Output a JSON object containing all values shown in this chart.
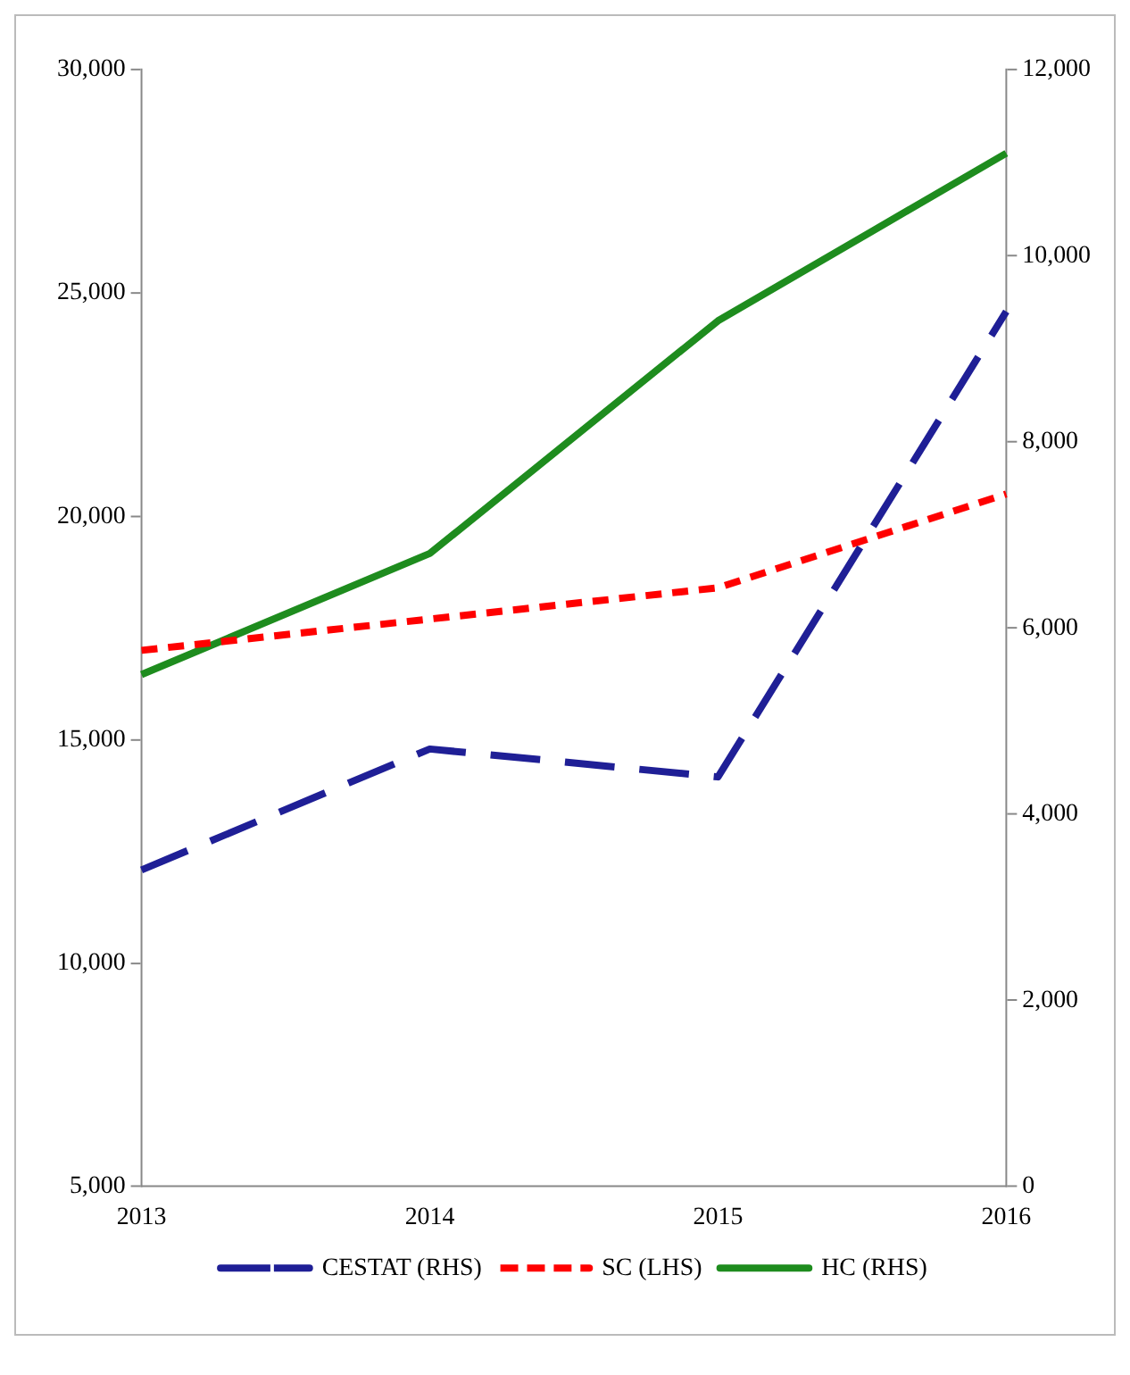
{
  "chart_data": {
    "type": "line",
    "categories": [
      "2013",
      "2014",
      "2015",
      "2016"
    ],
    "series": [
      {
        "name": "CESTAT (RHS)",
        "color": "#1f1f96",
        "values": [
          3400,
          4700,
          4400,
          9400
        ],
        "axis": "y2",
        "line_style": "dashed"
      },
      {
        "name": "SC (LHS)",
        "color": "#ff0000",
        "values": [
          17000,
          17700,
          18400,
          20500
        ],
        "line_style": "dotted"
      },
      {
        "name": "HC (RHS)",
        "color": "#1e8c1e",
        "values": [
          5500,
          6800,
          9300,
          11100
        ],
        "axis": "y2",
        "line_style": "solid"
      }
    ],
    "ylim": [
      5000,
      30000
    ],
    "yticks": [
      {
        "value": 5000,
        "label": "5,000"
      },
      {
        "value": 10000,
        "label": "10,000"
      },
      {
        "value": 15000,
        "label": "15,000"
      },
      {
        "value": 20000,
        "label": "20,000"
      },
      {
        "value": 25000,
        "label": "25,000"
      },
      {
        "value": 30000,
        "label": "30,000"
      }
    ],
    "y2lim": [
      0,
      12000
    ],
    "y2ticks": [
      0,
      {
        "value": 2000,
        "label": "2,000"
      },
      {
        "value": 4000,
        "label": "4,000"
      },
      {
        "value": 6000,
        "label": "6,000"
      },
      {
        "value": 8000,
        "label": "8,000"
      },
      {
        "value": 10000,
        "label": "10,000"
      },
      {
        "value": 12000,
        "label": "12,000"
      }
    ],
    "grid": false,
    "legend": "bottom",
    "marker": "none"
  }
}
